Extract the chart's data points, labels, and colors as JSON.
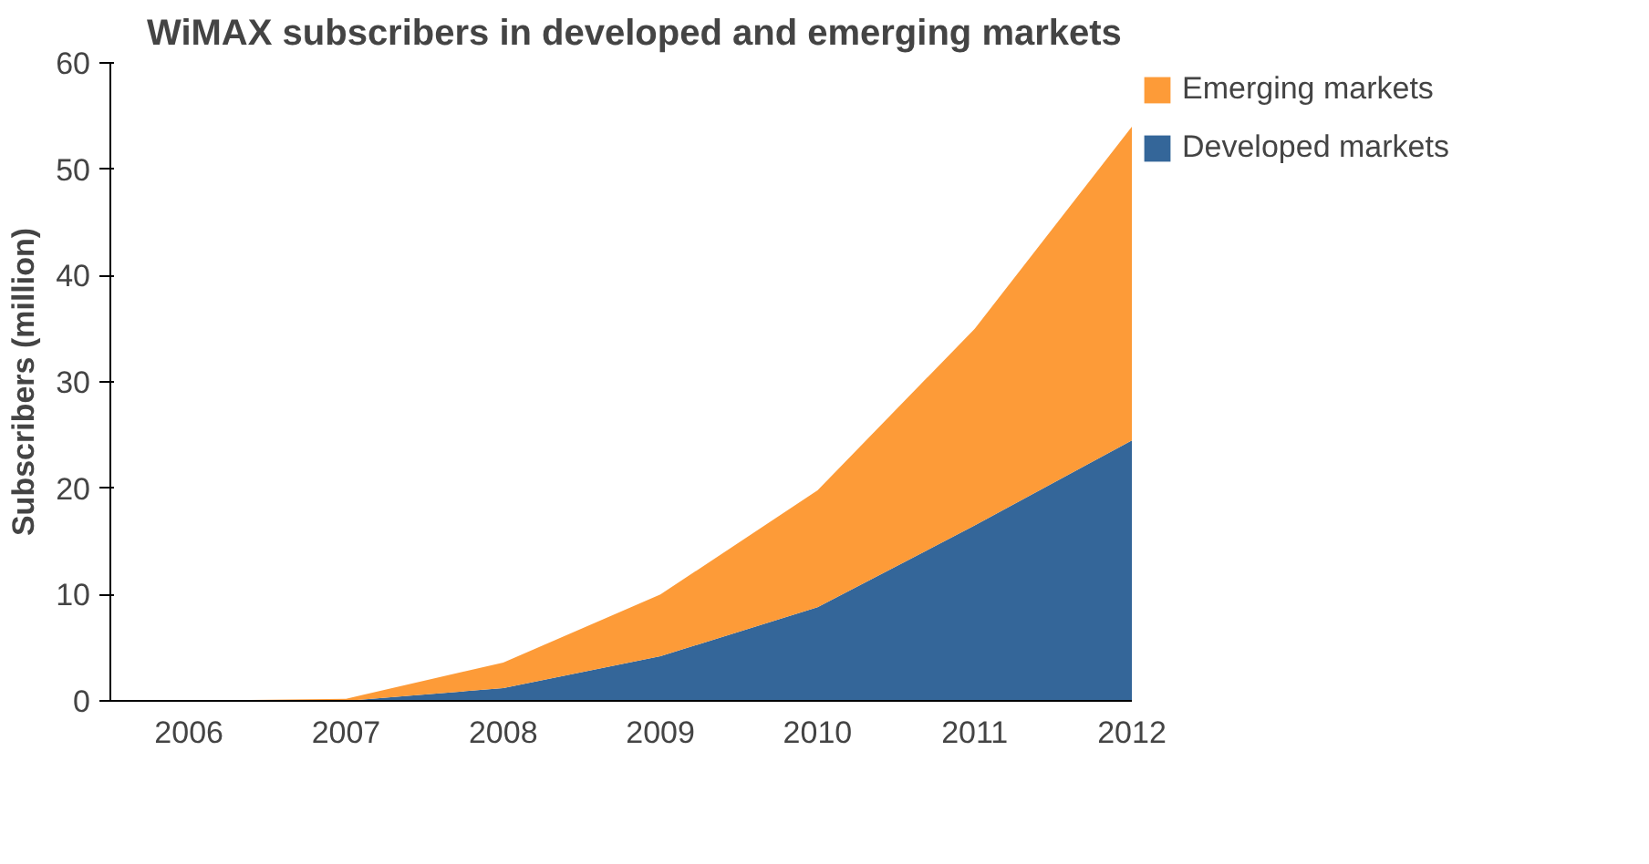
{
  "chart_data": {
    "type": "area",
    "stacked": true,
    "title": "WiMAX subscribers in developed and emerging markets",
    "ylabel": "Subscribers (million)",
    "categories": [
      "2006",
      "2007",
      "2008",
      "2009",
      "2010",
      "2011",
      "2012"
    ],
    "series": [
      {
        "name": "Developed markets",
        "color": "#346699",
        "values": [
          0,
          0,
          1.2,
          4.2,
          8.8,
          16.5,
          24.5
        ]
      },
      {
        "name": "Emerging markets",
        "color": "#fd9b38",
        "values": [
          0,
          0.2,
          2.4,
          5.8,
          11,
          18.5,
          29.5
        ]
      }
    ],
    "ylim": [
      0,
      60
    ],
    "yticks": [
      0,
      10,
      20,
      30,
      40,
      50,
      60
    ],
    "grid": false,
    "legend": "right"
  }
}
